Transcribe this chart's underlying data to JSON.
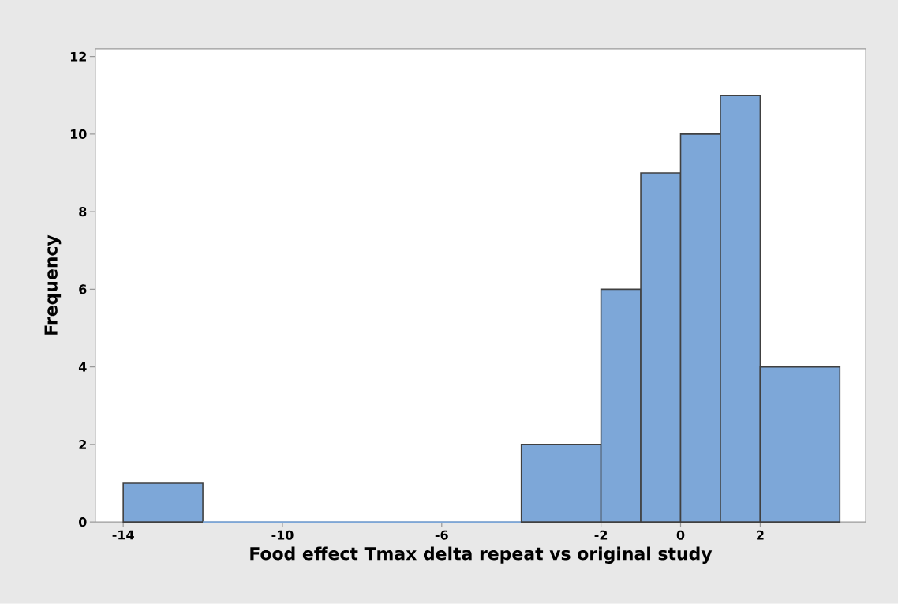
{
  "chart_data": {
    "type": "histogram",
    "xlabel": "Food effect Tmax delta repeat vs original study",
    "ylabel": "Frequency",
    "bins": [
      -14,
      -12,
      -4,
      -2,
      -1,
      0,
      1,
      2,
      4
    ],
    "values": [
      1,
      0,
      2,
      6,
      9,
      10,
      11,
      4
    ],
    "color": "#7da7d8",
    "xlim": [
      -14.7,
      4.65
    ],
    "ylim": [
      0,
      12.2
    ],
    "xticks": [
      -14,
      -10,
      -6,
      -2,
      0,
      2
    ],
    "yticks": [
      0,
      2,
      4,
      6,
      8,
      10,
      12
    ],
    "grid": false
  }
}
